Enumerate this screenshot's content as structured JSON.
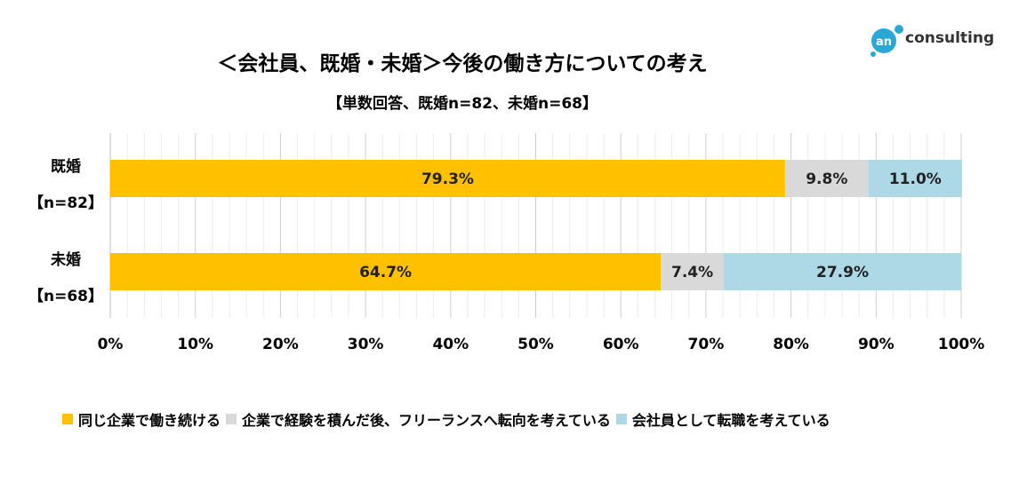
{
  "header": {
    "title": "＜会社員、既婚・未婚＞今後の働き方についての考え",
    "subtitle": "【単数回答、既婚n=82、未婚n=68】"
  },
  "logo": {
    "text": "consulting",
    "mark_text": "an",
    "color": "#29a8d8"
  },
  "chart_data": {
    "type": "bar",
    "orientation": "horizontal",
    "stacked": true,
    "percent_stacked": true,
    "categories": [
      {
        "label": "既婚",
        "sublabel": "【n=82】"
      },
      {
        "label": "未婚",
        "sublabel": "【n=68】"
      }
    ],
    "series": [
      {
        "name": "同じ企業で働き続ける",
        "color": "#FFC000",
        "values": [
          79.3,
          64.7
        ]
      },
      {
        "name": "企業で経験を積んだ後、フリーランスへ転向を考えている",
        "color": "#D9D9D9",
        "values": [
          9.8,
          7.4
        ]
      },
      {
        "name": "会社員として転職を考えている",
        "color": "#ADD8E6",
        "values": [
          11.0,
          27.9
        ]
      }
    ],
    "data_labels": [
      [
        "79.3%",
        "9.8%",
        "11.0%"
      ],
      [
        "64.7%",
        "7.4%",
        "27.9%"
      ]
    ],
    "xlim": [
      0,
      100
    ],
    "x_ticks": [
      "0%",
      "10%",
      "20%",
      "30%",
      "40%",
      "50%",
      "60%",
      "70%",
      "80%",
      "90%",
      "100%"
    ],
    "grid": true,
    "legend_position": "bottom"
  }
}
